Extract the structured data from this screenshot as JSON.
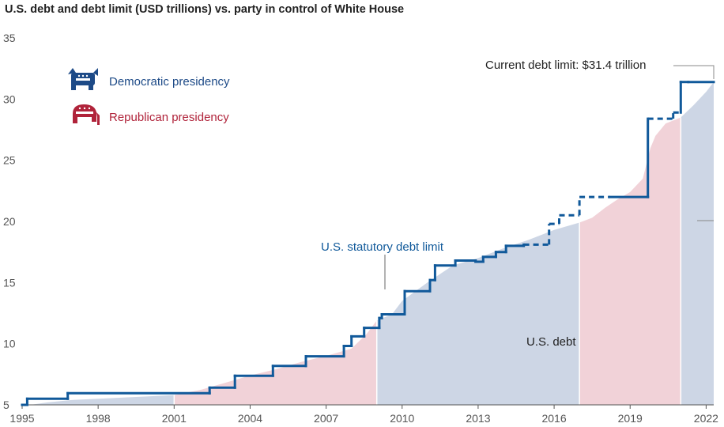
{
  "chart_data": {
    "type": "area",
    "title": "U.S. debt and debt limit (USD trillions) vs. party in control of White House",
    "xlabel": "",
    "ylabel": "",
    "xlim": [
      1995,
      2022.3
    ],
    "ylim": [
      5,
      35
    ],
    "yticks": [
      5,
      10,
      15,
      20,
      25,
      30,
      35
    ],
    "xticks": [
      1995,
      1998,
      2001,
      2004,
      2007,
      2010,
      2013,
      2016,
      2019,
      2022
    ],
    "legend": [
      {
        "label": "Democratic presidency",
        "color": "#1d4a87",
        "icon": "donkey-icon"
      },
      {
        "label": "Republican presidency",
        "color": "#b0233a",
        "icon": "elephant-icon"
      }
    ],
    "presidencies": [
      {
        "party": "Democratic",
        "start": 1995,
        "end": 2001
      },
      {
        "party": "Republican",
        "start": 2001,
        "end": 2009
      },
      {
        "party": "Democratic",
        "start": 2009,
        "end": 2017
      },
      {
        "party": "Republican",
        "start": 2017,
        "end": 2021
      },
      {
        "party": "Democratic",
        "start": 2021,
        "end": 2022.3
      }
    ],
    "colors": {
      "democratic_fill": "#cdd6e5",
      "republican_fill": "#f1d2d8",
      "limit_line": "#10599a"
    },
    "series": [
      {
        "name": "U.S. debt",
        "x": [
          1995,
          1996,
          1997,
          1998,
          1999,
          2000,
          2001,
          2002,
          2003,
          2004,
          2005,
          2006,
          2007,
          2008,
          2008.6,
          2009,
          2009.6,
          2010,
          2011,
          2012,
          2013,
          2014,
          2015,
          2016,
          2017,
          2017.5,
          2018,
          2018.5,
          2019,
          2019.5,
          2019.8,
          2020,
          2020.2,
          2020.4,
          2021,
          2021.5,
          2022,
          2022.3
        ],
        "values": [
          4.9,
          5.2,
          5.4,
          5.5,
          5.6,
          5.7,
          5.8,
          6.2,
          6.8,
          7.4,
          7.9,
          8.5,
          9.0,
          9.6,
          10.8,
          11.9,
          12.4,
          13.5,
          15.0,
          16.4,
          17.0,
          17.8,
          18.5,
          19.3,
          19.9,
          20.3,
          21.1,
          21.8,
          22.4,
          23.5,
          26.0,
          27.0,
          27.5,
          28.0,
          28.5,
          29.5,
          30.6,
          31.4
        ]
      },
      {
        "name": "U.S. statutory debt limit",
        "x": [
          1995,
          1995.2,
          1995.2,
          1996.8,
          1996.8,
          2002.4,
          2002.4,
          2003.4,
          2003.4,
          2004.9,
          2004.9,
          2006.2,
          2006.2,
          2007.7,
          2007.7,
          2008.0,
          2008.0,
          2008.5,
          2008.5,
          2009.1,
          2009.1,
          2009.2,
          2009.2,
          2010.1,
          2010.1,
          2011.1,
          2011.1,
          2011.3,
          2011.3,
          2012.1,
          2012.1,
          2012.9,
          2012.9,
          2013.2,
          2013.2,
          2013.7,
          2013.7,
          2014.1,
          2014.1,
          2014.8,
          2014.8,
          2015.8,
          2015.8,
          2016.2,
          2016.2,
          2017.0,
          2017.0,
          2018.2,
          2018.2,
          2019.7,
          2019.7,
          2020.7,
          2020.7,
          2021.0,
          2021.0,
          2021.3,
          2021.3,
          2022.3
        ],
        "values": [
          5.0,
          5.0,
          5.5,
          5.5,
          5.95,
          5.95,
          6.4,
          6.4,
          7.38,
          7.38,
          8.18,
          8.18,
          8.97,
          8.97,
          9.82,
          9.82,
          10.6,
          10.6,
          11.3,
          11.3,
          12.1,
          12.1,
          12.4,
          12.4,
          14.3,
          14.3,
          15.2,
          15.2,
          16.4,
          16.4,
          16.8,
          16.8,
          16.7,
          16.7,
          17.1,
          17.1,
          17.5,
          17.5,
          18.0,
          18.0,
          18.1,
          18.1,
          19.8,
          19.8,
          20.5,
          20.5,
          22.0,
          22.0,
          22.0,
          22.0,
          28.4,
          28.4,
          28.9,
          28.9,
          31.4,
          31.4,
          31.4,
          31.4
        ],
        "dashed_segments": [
          [
            2014.8,
            2018.3
          ],
          [
            2019.8,
            2021.0
          ]
        ]
      }
    ],
    "annotations": {
      "limit_label": "U.S. statutory debt limit",
      "debt_label": "U.S. debt",
      "current_limit": "Current debt limit: $31.4 trillion"
    }
  }
}
